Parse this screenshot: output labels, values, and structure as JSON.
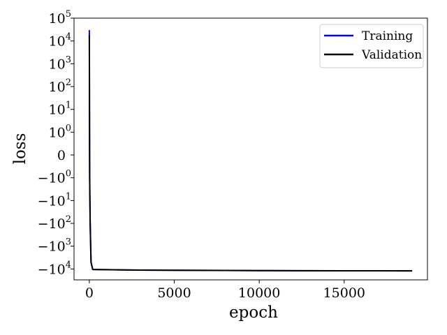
{
  "chart_data": {
    "type": "line",
    "title": "",
    "xlabel": "epoch",
    "ylabel": "loss",
    "xlim": [
      -900,
      19900
    ],
    "y_scale": "symlog",
    "y_linthresh": 1,
    "ylim": [
      -30000,
      100000
    ],
    "x_ticks": [
      {
        "value": 0,
        "label": "0"
      },
      {
        "value": 5000,
        "label": "5000"
      },
      {
        "value": 10000,
        "label": "10000"
      },
      {
        "value": 15000,
        "label": "15000"
      }
    ],
    "y_ticks": [
      {
        "value": 100000,
        "base": "10",
        "exp": "5"
      },
      {
        "value": 10000,
        "base": "10",
        "exp": "4"
      },
      {
        "value": 1000,
        "base": "10",
        "exp": "3"
      },
      {
        "value": 100,
        "base": "10",
        "exp": "2"
      },
      {
        "value": 10,
        "base": "10",
        "exp": "1"
      },
      {
        "value": 1,
        "base": "10",
        "exp": "0"
      },
      {
        "value": 0,
        "base": "0",
        "exp": ""
      },
      {
        "value": -1,
        "base": "−10",
        "exp": "0"
      },
      {
        "value": -10,
        "base": "−10",
        "exp": "1"
      },
      {
        "value": -100,
        "base": "−10",
        "exp": "2"
      },
      {
        "value": -1000,
        "base": "−10",
        "exp": "3"
      },
      {
        "value": -10000,
        "base": "−10",
        "exp": "4"
      }
    ],
    "legend_position": "top-right",
    "series": [
      {
        "name": "Training",
        "color": "#0000ff",
        "x": [
          0,
          1,
          2,
          5,
          10,
          20,
          50,
          100,
          200,
          500,
          1000,
          2000,
          3000,
          5000,
          8000,
          10000,
          12000,
          15000,
          17000,
          19000
        ],
        "y": [
          30000,
          25000,
          10000,
          1000,
          10,
          -1,
          -100,
          -5000,
          -10500,
          -10600,
          -10700,
          -11000,
          -11200,
          -11400,
          -11600,
          -11800,
          -11900,
          -12000,
          -12050,
          -12100
        ]
      },
      {
        "name": "Validation",
        "color": "#000000",
        "x": [
          0,
          1,
          2,
          5,
          10,
          20,
          50,
          100,
          200,
          500,
          1000,
          2000,
          3000,
          5000,
          8000,
          10000,
          12000,
          15000,
          17000,
          19000
        ],
        "y": [
          18000,
          15000,
          5000,
          500,
          5,
          -1,
          -100,
          -5000,
          -10500,
          -10600,
          -10700,
          -11000,
          -11200,
          -11400,
          -11600,
          -11800,
          -11900,
          -12000,
          -12050,
          -12100
        ]
      }
    ]
  }
}
